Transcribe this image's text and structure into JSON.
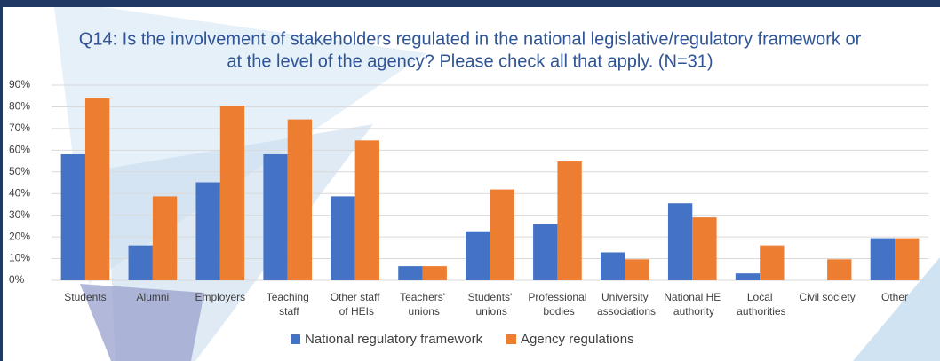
{
  "chart_data": {
    "type": "bar",
    "title": [
      "Q14: Is the involvement of stakeholders regulated in the national legislative/regulatory framework or",
      "at the level of the agency? Please check all that apply. (N=31)"
    ],
    "categories": [
      "Students",
      "Alumni",
      "Employers",
      "Teaching\nstaff",
      "Other staff\nof HEIs",
      "Teachers'\nunions",
      "Students'\nunions",
      "Professional\nbodies",
      "University\nassociations",
      "National HE\nauthority",
      "Local\nauthorities",
      "Civil society",
      "Other"
    ],
    "series": [
      {
        "name": "National regulatory framework",
        "color": "#4472c4",
        "values": [
          58.1,
          16.1,
          45.2,
          58.1,
          38.7,
          6.5,
          22.6,
          25.8,
          12.9,
          35.5,
          3.2,
          0,
          19.4
        ]
      },
      {
        "name": "Agency regulations",
        "color": "#ed7d31",
        "values": [
          83.9,
          38.7,
          80.6,
          74.2,
          64.5,
          6.5,
          41.9,
          54.8,
          9.7,
          29.0,
          16.1,
          9.7,
          19.4
        ]
      }
    ],
    "ylim": [
      0,
      90
    ],
    "yticks": [
      {
        "value": 0,
        "label": "0%"
      },
      {
        "value": 10,
        "label": "10%"
      },
      {
        "value": 20,
        "label": "20%"
      },
      {
        "value": 30,
        "label": "30%"
      },
      {
        "value": 40,
        "label": "40%"
      },
      {
        "value": 50,
        "label": "50%"
      },
      {
        "value": 60,
        "label": "60%"
      },
      {
        "value": 70,
        "label": "70%"
      },
      {
        "value": 80,
        "label": "80%"
      },
      {
        "value": 90,
        "label": "90%"
      }
    ],
    "grid": true
  }
}
